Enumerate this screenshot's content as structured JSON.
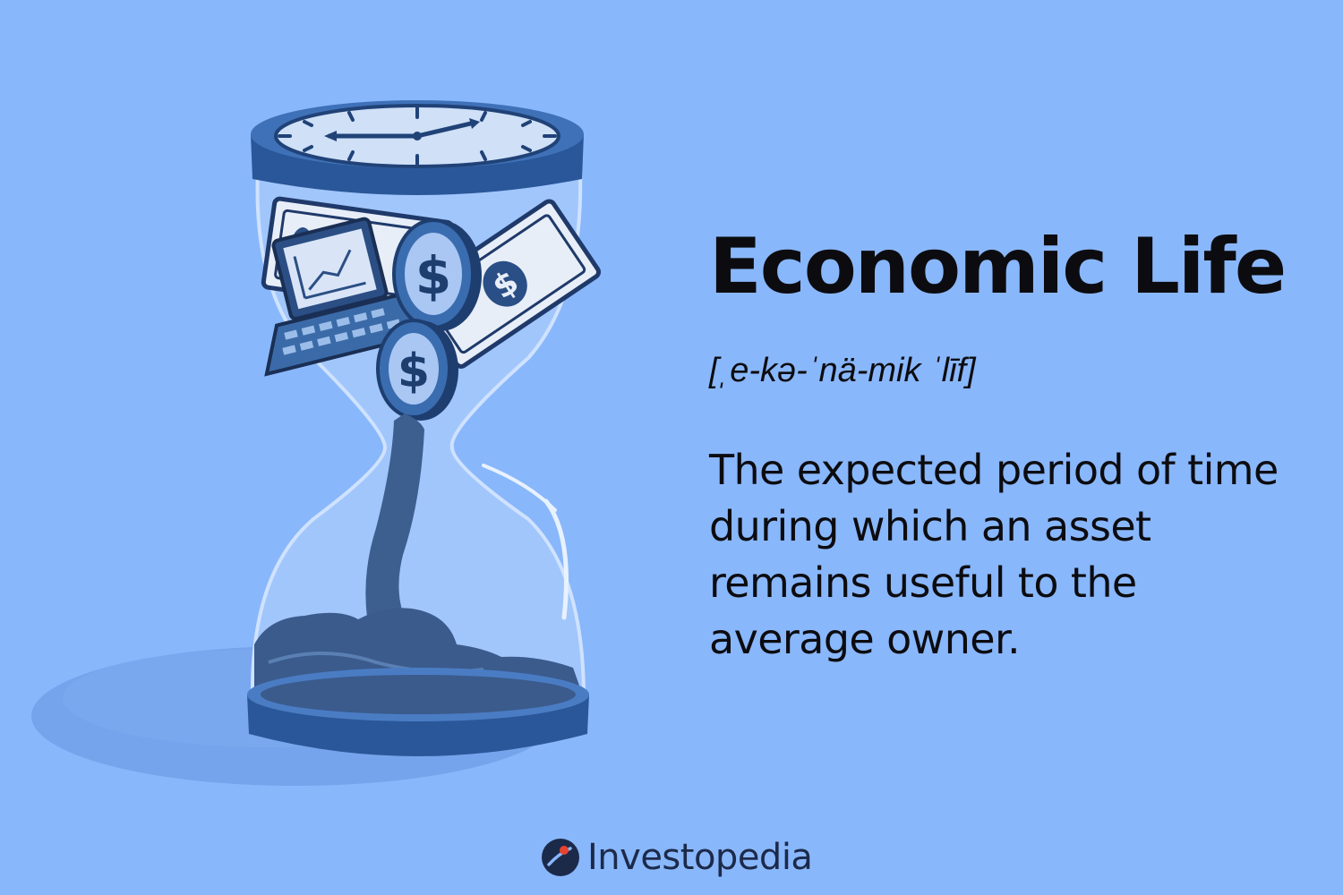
{
  "definition_card": {
    "term": "Economic Life",
    "pronunciation": "[ˌe-kə-ˈnä-mik ˈlīf]",
    "definition": "The expected period of time during which an asset remains useful to the average owner."
  },
  "brand": {
    "name": "Investopedia",
    "accent_color": "#e8432c",
    "mark_color": "#1c2a4a"
  },
  "illustration": {
    "subject": "hourglass-clock",
    "background_color": "#89b7fb",
    "primary_color": "#2f5fa6"
  }
}
